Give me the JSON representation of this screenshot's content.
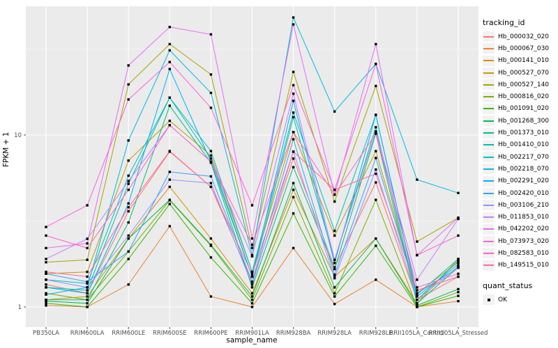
{
  "colors": {
    "panel_bg": "#EBEBEB",
    "grid_major": "#FFFFFF",
    "grid_minor": "#FFFFFF",
    "tick_label": "#4D4D4D",
    "axis_title": "#000000",
    "marker": "#000000",
    "legend_key_bg": "#F2F2F2"
  },
  "legend": {
    "tracking_id_title": "tracking_id",
    "quant_status_title": "quant_status",
    "quant_status_value": "OK"
  },
  "chart_data": {
    "type": "line",
    "title": "",
    "xlabel": "sample_name",
    "ylabel": "FPKM + 1",
    "y_scale": "log10",
    "y_ticks": [
      1,
      10
    ],
    "ylim": [
      0.76,
      53.6
    ],
    "grid": "on",
    "legend_position": "right",
    "marker": "black-square",
    "categories": [
      "PB350LA",
      "RRIM600LA",
      "RRIM600LE",
      "RRIM600SE",
      "RRIM600PE",
      "RRIM901LA",
      "RRIM928BA",
      "RRIM928LA",
      "RRIM928LE",
      "RRII105LA_Control",
      "RRII105LA_Stressed"
    ],
    "series": [
      {
        "name": "Hb_000032_020",
        "color": "#F8766D",
        "values": [
          1.35,
          1.2,
          3.6,
          8.0,
          5.0,
          1.4,
          7.3,
          1.7,
          5.3,
          1.1,
          1.5
        ]
      },
      {
        "name": "Hb_000067_030",
        "color": "#EA8331",
        "values": [
          1.02,
          1.0,
          1.35,
          2.95,
          1.15,
          1.0,
          2.2,
          1.04,
          1.44,
          1.0,
          1.08
        ]
      },
      {
        "name": "Hb_000141_010",
        "color": "#D89000",
        "values": [
          1.1,
          1.15,
          2.5,
          5.0,
          2.5,
          1.2,
          4.8,
          1.5,
          2.5,
          1.05,
          1.9
        ]
      },
      {
        "name": "Hb_000527_070",
        "color": "#C09B00",
        "values": [
          1.56,
          1.6,
          7.1,
          12.1,
          7.6,
          1.6,
          10.4,
          2.6,
          8.06,
          1.2,
          1.82
        ]
      },
      {
        "name": "Hb_000527_140",
        "color": "#A3A500",
        "values": [
          1.82,
          1.88,
          19.7,
          33.8,
          22.5,
          2.2,
          23.3,
          4.1,
          19.3,
          2.4,
          3.3
        ]
      },
      {
        "name": "Hb_000816_020",
        "color": "#7CAE00",
        "values": [
          1.2,
          1.1,
          2.1,
          4.17,
          2.27,
          1.1,
          4.35,
          1.2,
          4.2,
          1.0,
          1.22
        ]
      },
      {
        "name": "Hb_001091_020",
        "color": "#39B600",
        "values": [
          1.05,
          1.0,
          1.9,
          3.97,
          1.94,
          1.05,
          3.5,
          1.15,
          2.27,
          1.0,
          1.16
        ]
      },
      {
        "name": "Hb_001268_300",
        "color": "#00BB4E",
        "values": [
          1.08,
          1.05,
          2.5,
          4.2,
          2.3,
          1.15,
          5.25,
          1.3,
          2.5,
          1.02,
          1.27
        ]
      },
      {
        "name": "Hb_001373_010",
        "color": "#00BF7D",
        "values": [
          1.1,
          1.1,
          3.1,
          14.8,
          6.9,
          1.3,
          6.5,
          1.66,
          10.2,
          1.05,
          1.7
        ]
      },
      {
        "name": "Hb_001410_010",
        "color": "#00C1A3",
        "values": [
          1.3,
          1.25,
          5.2,
          16.5,
          7.3,
          1.5,
          12.7,
          1.88,
          11.1,
          1.1,
          1.85
        ]
      },
      {
        "name": "Hb_002217_070",
        "color": "#00BFC4",
        "values": [
          1.44,
          1.37,
          5.8,
          16.5,
          8.06,
          1.6,
          13.5,
          2.77,
          13.1,
          1.18,
          1.9
        ]
      },
      {
        "name": "Hb_002218_070",
        "color": "#00BAE0",
        "values": [
          1.18,
          1.3,
          9.3,
          31.1,
          17.6,
          2.0,
          48.3,
          13.7,
          25.9,
          5.5,
          4.6
        ]
      },
      {
        "name": "Hb_002291_020",
        "color": "#00B0F6",
        "values": [
          1.3,
          1.2,
          4.0,
          24.2,
          7.0,
          1.5,
          15.8,
          1.8,
          13.1,
          1.15,
          1.77
        ]
      },
      {
        "name": "Hb_002420_010",
        "color": "#35A2FF",
        "values": [
          1.56,
          1.4,
          2.1,
          6.1,
          5.75,
          1.4,
          9.45,
          1.54,
          7.35,
          1.2,
          1.69
        ]
      },
      {
        "name": "Hb_003106_210",
        "color": "#9590FF",
        "values": [
          1.44,
          1.3,
          2.6,
          5.5,
          5.25,
          1.35,
          8.0,
          1.47,
          6.3,
          1.1,
          1.72
        ]
      },
      {
        "name": "Hb_011853_010",
        "color": "#C77CFF",
        "values": [
          1.9,
          2.49,
          5.4,
          11.4,
          7.0,
          1.97,
          17.4,
          1.88,
          10.5,
          1.44,
          3.25
        ]
      },
      {
        "name": "Hb_042202_020",
        "color": "#E76BF3",
        "values": [
          2.2,
          2.34,
          25.4,
          42.5,
          38.5,
          2.5,
          44.0,
          4.5,
          33.8,
          2.0,
          3.3
        ]
      },
      {
        "name": "Hb_073973_020",
        "color": "#FA62DB",
        "values": [
          2.92,
          3.9,
          16.1,
          26.6,
          14.4,
          3.9,
          19.5,
          4.8,
          25.9,
          2.0,
          2.6
        ]
      },
      {
        "name": "Hb_082583_010",
        "color": "#FF61CC",
        "values": [
          2.6,
          2.2,
          4.8,
          11.4,
          7.0,
          2.3,
          10.4,
          4.5,
          10.2,
          1.3,
          1.56
        ]
      },
      {
        "name": "Hb_149515_010",
        "color": "#FF689F",
        "values": [
          1.6,
          1.5,
          3.8,
          8.06,
          5.0,
          1.55,
          8.0,
          4.8,
          5.95,
          1.25,
          1.5
        ]
      }
    ]
  }
}
